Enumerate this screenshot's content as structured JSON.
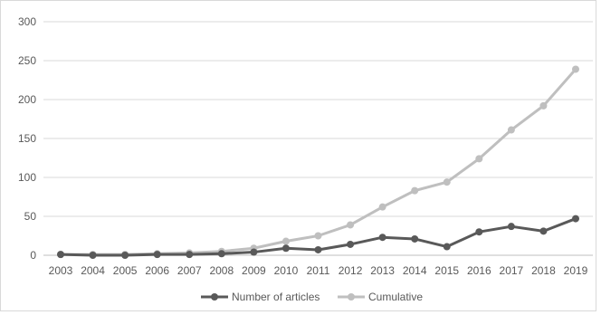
{
  "chart_data": {
    "type": "line",
    "x": [
      "2003",
      "2004",
      "2005",
      "2006",
      "2007",
      "2008",
      "2009",
      "2010",
      "2011",
      "2012",
      "2013",
      "2014",
      "2015",
      "2016",
      "2017",
      "2018",
      "2019"
    ],
    "series": [
      {
        "name": "Number of articles",
        "color": "#595959",
        "values": [
          1,
          0,
          0,
          1,
          1,
          2,
          4,
          9,
          7,
          14,
          23,
          21,
          11,
          30,
          37,
          31,
          47
        ]
      },
      {
        "name": "Cumulative",
        "color": "#bfbfbf",
        "values": [
          1,
          1,
          1,
          2,
          3,
          5,
          9,
          18,
          25,
          39,
          62,
          83,
          94,
          124,
          161,
          192,
          239
        ]
      }
    ],
    "ylim": [
      0,
      300
    ],
    "yticks": [
      0,
      50,
      100,
      150,
      200,
      250,
      300
    ],
    "grid": true,
    "legend": "bottom"
  }
}
